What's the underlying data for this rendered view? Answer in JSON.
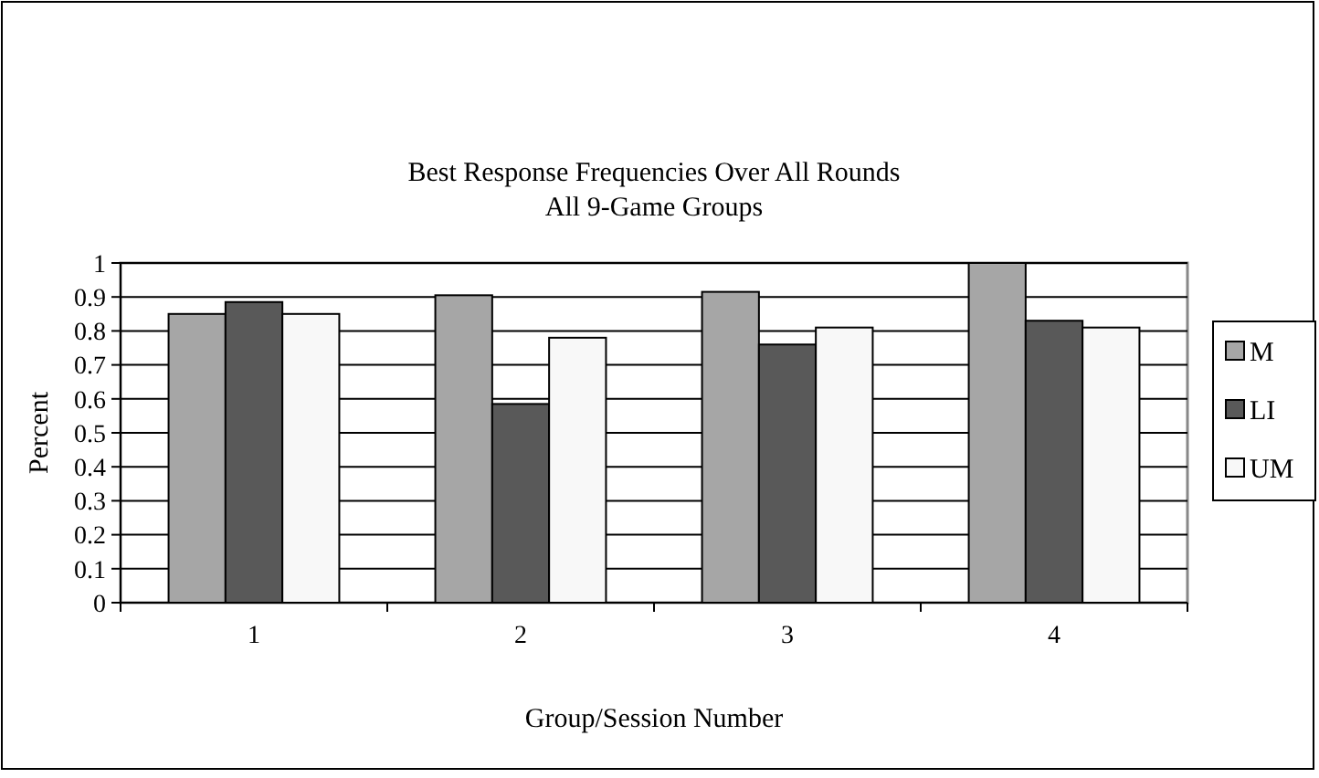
{
  "chart_data": {
    "type": "bar",
    "title": "Best Response Frequencies Over All Rounds",
    "subtitle": "All 9-Game Groups",
    "xlabel": "Group/Session Number",
    "ylabel": "Percent",
    "categories": [
      "1",
      "2",
      "3",
      "4"
    ],
    "series": [
      {
        "name": "M",
        "color": "#a6a6a6",
        "values": [
          0.85,
          0.905,
          0.915,
          1.0
        ]
      },
      {
        "name": "LI",
        "color": "#595959",
        "values": [
          0.885,
          0.585,
          0.76,
          0.83
        ]
      },
      {
        "name": "UM",
        "color": "#f8f8f8",
        "values": [
          0.85,
          0.78,
          0.81,
          0.81
        ]
      }
    ],
    "ylim": [
      0,
      1
    ],
    "yticks": [
      0,
      0.1,
      0.2,
      0.3,
      0.4,
      0.5,
      0.6,
      0.7,
      0.8,
      0.9,
      1
    ],
    "grid": "y",
    "legend": "right"
  }
}
